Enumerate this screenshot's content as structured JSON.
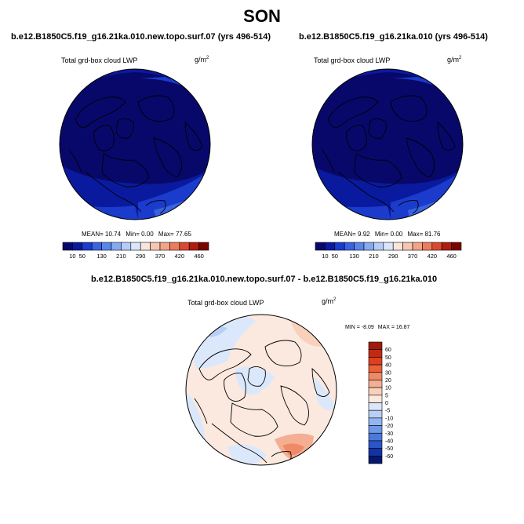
{
  "page": {
    "title": "SON"
  },
  "chart_data": [
    {
      "type": "heatmap",
      "title": "b.e12.B1850C5.f19_g16.21ka.010.new.topo.surf.07 (yrs 496-514)",
      "subtitle": "Total grd-box cloud LWP",
      "units": "g/m",
      "units_exp": "2",
      "stats": {
        "mean": 10.74,
        "min": 0.0,
        "max": 77.65
      },
      "stats_text": {
        "mean_label": "MEAN=",
        "mean": "10.74",
        "min_label": "Min=",
        "min": "0.00",
        "max_label": "Max=",
        "max": "77.65"
      },
      "colorbar": {
        "orientation": "horizontal",
        "levels": [
          10,
          50,
          90,
          130,
          170,
          210,
          250,
          290,
          330,
          370,
          400,
          420,
          440,
          460
        ],
        "labeled_levels": [
          "10",
          "50",
          "130",
          "210",
          "290",
          "370",
          "420",
          "460"
        ],
        "colors": [
          "#08086b",
          "#0a1a9e",
          "#1a3bcc",
          "#3a63e0",
          "#5a86ea",
          "#86aaf2",
          "#b5ccf7",
          "#d9e6fb",
          "#f8e6dc",
          "#f6c6b0",
          "#f2a486",
          "#ec7c5c",
          "#d84a30",
          "#b01c10",
          "#7a0400"
        ]
      },
      "map": {
        "projection": "north-polar-stereographic",
        "dominant_value_range": [
          0,
          50
        ],
        "field_colors": [
          "#08086b",
          "#0a1a9e",
          "#1a3bcc",
          "#3a63e0"
        ]
      }
    },
    {
      "type": "heatmap",
      "title": "b.e12.B1850C5.f19_g16.21ka.010 (yrs 496-514)",
      "subtitle": "Total grd-box cloud LWP",
      "units": "g/m",
      "units_exp": "2",
      "stats": {
        "mean": 9.92,
        "min": 0.0,
        "max": 81.76
      },
      "stats_text": {
        "mean_label": "MEAN=",
        "mean": "9.92",
        "min_label": "Min=",
        "min": "0.00",
        "max_label": "Max=",
        "max": "81.76"
      },
      "colorbar": {
        "orientation": "horizontal",
        "levels": [
          10,
          50,
          90,
          130,
          170,
          210,
          250,
          290,
          330,
          370,
          400,
          420,
          440,
          460
        ],
        "labeled_levels": [
          "10",
          "50",
          "130",
          "210",
          "290",
          "370",
          "420",
          "460"
        ],
        "colors": [
          "#08086b",
          "#0a1a9e",
          "#1a3bcc",
          "#3a63e0",
          "#5a86ea",
          "#86aaf2",
          "#b5ccf7",
          "#d9e6fb",
          "#f8e6dc",
          "#f6c6b0",
          "#f2a486",
          "#ec7c5c",
          "#d84a30",
          "#b01c10",
          "#7a0400"
        ]
      },
      "map": {
        "projection": "north-polar-stereographic",
        "dominant_value_range": [
          0,
          50
        ],
        "field_colors": [
          "#08086b",
          "#0a1a9e",
          "#1a3bcc",
          "#3a63e0"
        ]
      }
    },
    {
      "type": "heatmap",
      "title": "b.e12.B1850C5.f19_g16.21ka.010.new.topo.surf.07 - b.e12.B1850C5.f19_g16.21ka.010",
      "subtitle": "Total grd-box cloud LWP",
      "units": "g/m",
      "units_exp": "2",
      "stats": {
        "min": -8.09,
        "max": 16.87
      },
      "stats_text": {
        "min_label": "MIN =",
        "min": "-8.09",
        "max_label": "MAX =",
        "max": "16.87"
      },
      "colorbar": {
        "orientation": "vertical",
        "levels": [
          60,
          50,
          40,
          30,
          20,
          10,
          5,
          0,
          -5,
          -10,
          -20,
          -30,
          -40,
          -50,
          -60
        ],
        "labeled_levels": [
          "60",
          "50",
          "40",
          "30",
          "20",
          "10",
          "5",
          "0",
          "-5",
          "-10",
          "-20",
          "-30",
          "-40",
          "-50",
          "-60"
        ],
        "colors": [
          "#a01a0c",
          "#c22a12",
          "#dd4020",
          "#ea6038",
          "#f08a66",
          "#f4ae92",
          "#f8d0bc",
          "#fbe9df",
          "#dbe8fb",
          "#b8d0f6",
          "#93b5f0",
          "#6f98e6",
          "#4b78dc",
          "#2c55c8",
          "#1232a8",
          "#06186e"
        ]
      },
      "map": {
        "projection": "north-polar-stereographic",
        "dominant_value_range": [
          -5,
          5
        ],
        "field_colors": [
          "#dbe8fb",
          "#fbe9df",
          "#f8d0bc",
          "#b8d0f6"
        ]
      }
    }
  ]
}
